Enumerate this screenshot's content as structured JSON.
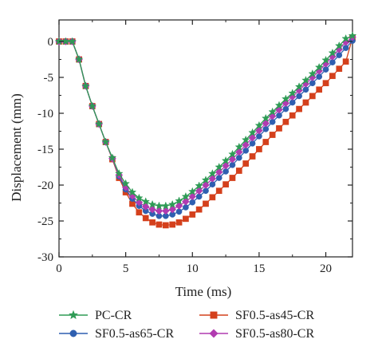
{
  "chart_data": {
    "type": "line",
    "title": "",
    "xlabel": "Time (ms)",
    "ylabel": "Displacement (mm)",
    "xlim": [
      0,
      22
    ],
    "ylim": [
      -30,
      3
    ],
    "xticks": [
      "0",
      "5",
      "10",
      "15",
      "20"
    ],
    "yticks": [
      "0",
      "-5",
      "-10",
      "-15",
      "-20",
      "-25",
      "-30"
    ],
    "legend_position": "bottom",
    "grid": false,
    "series": [
      {
        "name": "PC-CR",
        "color": "#2e9b55",
        "marker": "star",
        "points": [
          [
            0,
            0
          ],
          [
            0.5,
            0
          ],
          [
            1,
            0
          ],
          [
            1.5,
            -2.5
          ],
          [
            2,
            -6.2
          ],
          [
            2.5,
            -9
          ],
          [
            3,
            -11.5
          ],
          [
            3.5,
            -14
          ],
          [
            4,
            -16.2
          ],
          [
            4.5,
            -18.4
          ],
          [
            5,
            -19.8
          ],
          [
            5.5,
            -21
          ],
          [
            6,
            -21.8
          ],
          [
            6.5,
            -22.3
          ],
          [
            7,
            -22.7
          ],
          [
            7.5,
            -22.9
          ],
          [
            8,
            -22.9
          ],
          [
            8.5,
            -22.7
          ],
          [
            9,
            -22.2
          ],
          [
            9.5,
            -21.6
          ],
          [
            10,
            -20.9
          ],
          [
            10.5,
            -20.1
          ],
          [
            11,
            -19.3
          ],
          [
            11.5,
            -18.4
          ],
          [
            12,
            -17.5
          ],
          [
            12.5,
            -16.6
          ],
          [
            13,
            -15.7
          ],
          [
            13.5,
            -14.7
          ],
          [
            14,
            -13.7
          ],
          [
            14.5,
            -12.7
          ],
          [
            15,
            -11.7
          ],
          [
            15.5,
            -10.7
          ],
          [
            16,
            -9.8
          ],
          [
            16.5,
            -8.9
          ],
          [
            17,
            -8
          ],
          [
            17.5,
            -7.2
          ],
          [
            18,
            -6.3
          ],
          [
            18.5,
            -5.4
          ],
          [
            19,
            -4.5
          ],
          [
            19.5,
            -3.6
          ],
          [
            20,
            -2.6
          ],
          [
            20.5,
            -1.6
          ],
          [
            21,
            -0.6
          ],
          [
            21.5,
            0.4
          ],
          [
            22,
            0.8
          ]
        ]
      },
      {
        "name": "SF0.5-as45-CR",
        "color": "#d4401c",
        "marker": "square",
        "points": [
          [
            0,
            0
          ],
          [
            0.5,
            0
          ],
          [
            1,
            0
          ],
          [
            1.5,
            -2.5
          ],
          [
            2,
            -6.2
          ],
          [
            2.5,
            -9
          ],
          [
            3,
            -11.5
          ],
          [
            3.5,
            -14
          ],
          [
            4,
            -16.4
          ],
          [
            4.5,
            -19
          ],
          [
            5,
            -21
          ],
          [
            5.5,
            -22.6
          ],
          [
            6,
            -23.8
          ],
          [
            6.5,
            -24.6
          ],
          [
            7,
            -25.2
          ],
          [
            7.5,
            -25.5
          ],
          [
            8,
            -25.6
          ],
          [
            8.5,
            -25.5
          ],
          [
            9,
            -25.2
          ],
          [
            9.5,
            -24.7
          ],
          [
            10,
            -24.1
          ],
          [
            10.5,
            -23.4
          ],
          [
            11,
            -22.6
          ],
          [
            11.5,
            -21.7
          ],
          [
            12,
            -20.8
          ],
          [
            12.5,
            -19.9
          ],
          [
            13,
            -19
          ],
          [
            13.5,
            -18
          ],
          [
            14,
            -17
          ],
          [
            14.5,
            -16
          ],
          [
            15,
            -15
          ],
          [
            15.5,
            -14
          ],
          [
            16,
            -13
          ],
          [
            16.5,
            -12.1
          ],
          [
            17,
            -11.2
          ],
          [
            17.5,
            -10.3
          ],
          [
            18,
            -9.4
          ],
          [
            18.5,
            -8.5
          ],
          [
            19,
            -7.6
          ],
          [
            19.5,
            -6.7
          ],
          [
            20,
            -5.8
          ],
          [
            20.5,
            -4.8
          ],
          [
            21,
            -3.8
          ],
          [
            21.5,
            -2.8
          ],
          [
            22,
            0.5
          ]
        ]
      },
      {
        "name": "SF0.5-as65-CR",
        "color": "#2f5fb0",
        "marker": "circle",
        "points": [
          [
            0,
            0
          ],
          [
            0.5,
            0
          ],
          [
            1,
            0
          ],
          [
            1.5,
            -2.5
          ],
          [
            2,
            -6.2
          ],
          [
            2.5,
            -9
          ],
          [
            3,
            -11.5
          ],
          [
            3.5,
            -14
          ],
          [
            4,
            -16.3
          ],
          [
            4.5,
            -18.8
          ],
          [
            5,
            -20.6
          ],
          [
            5.5,
            -21.9
          ],
          [
            6,
            -22.9
          ],
          [
            6.5,
            -23.6
          ],
          [
            7,
            -24
          ],
          [
            7.5,
            -24.3
          ],
          [
            8,
            -24.3
          ],
          [
            8.5,
            -24.1
          ],
          [
            9,
            -23.7
          ],
          [
            9.5,
            -23.1
          ],
          [
            10,
            -22.4
          ],
          [
            10.5,
            -21.6
          ],
          [
            11,
            -20.8
          ],
          [
            11.5,
            -19.9
          ],
          [
            12,
            -19
          ],
          [
            12.5,
            -18.1
          ],
          [
            13,
            -17.2
          ],
          [
            13.5,
            -16.2
          ],
          [
            14,
            -15.2
          ],
          [
            14.5,
            -14.2
          ],
          [
            15,
            -13.2
          ],
          [
            15.5,
            -12.2
          ],
          [
            16,
            -11.2
          ],
          [
            16.5,
            -10.3
          ],
          [
            17,
            -9.4
          ],
          [
            17.5,
            -8.5
          ],
          [
            18,
            -7.6
          ],
          [
            18.5,
            -6.7
          ],
          [
            19,
            -5.8
          ],
          [
            19.5,
            -4.9
          ],
          [
            20,
            -3.9
          ],
          [
            20.5,
            -2.9
          ],
          [
            21,
            -1.9
          ],
          [
            21.5,
            -0.9
          ],
          [
            22,
            0.1
          ]
        ]
      },
      {
        "name": "SF0.5-as80-CR",
        "color": "#b13bb0",
        "marker": "diamond",
        "points": [
          [
            0,
            0
          ],
          [
            0.5,
            0
          ],
          [
            1,
            0
          ],
          [
            1.5,
            -2.5
          ],
          [
            2,
            -6.2
          ],
          [
            2.5,
            -9
          ],
          [
            3,
            -11.5
          ],
          [
            3.5,
            -14
          ],
          [
            4,
            -16.3
          ],
          [
            4.5,
            -18.6
          ],
          [
            5,
            -20.3
          ],
          [
            5.5,
            -21.5
          ],
          [
            6,
            -22.4
          ],
          [
            6.5,
            -23
          ],
          [
            7,
            -23.4
          ],
          [
            7.5,
            -23.6
          ],
          [
            8,
            -23.6
          ],
          [
            8.5,
            -23.4
          ],
          [
            9,
            -22.9
          ],
          [
            9.5,
            -22.3
          ],
          [
            10,
            -21.6
          ],
          [
            10.5,
            -20.8
          ],
          [
            11,
            -20
          ],
          [
            11.5,
            -19.1
          ],
          [
            12,
            -18.2
          ],
          [
            12.5,
            -17.3
          ],
          [
            13,
            -16.4
          ],
          [
            13.5,
            -15.4
          ],
          [
            14,
            -14.4
          ],
          [
            14.5,
            -13.4
          ],
          [
            15,
            -12.4
          ],
          [
            15.5,
            -11.4
          ],
          [
            16,
            -10.4
          ],
          [
            16.5,
            -9.5
          ],
          [
            17,
            -8.6
          ],
          [
            17.5,
            -7.7
          ],
          [
            18,
            -6.8
          ],
          [
            18.5,
            -5.9
          ],
          [
            19,
            -5
          ],
          [
            19.5,
            -4.1
          ],
          [
            20,
            -3.1
          ],
          [
            20.5,
            -2.1
          ],
          [
            21,
            -1.1
          ],
          [
            21.5,
            -0.1
          ],
          [
            22,
            0.6
          ]
        ]
      }
    ]
  }
}
